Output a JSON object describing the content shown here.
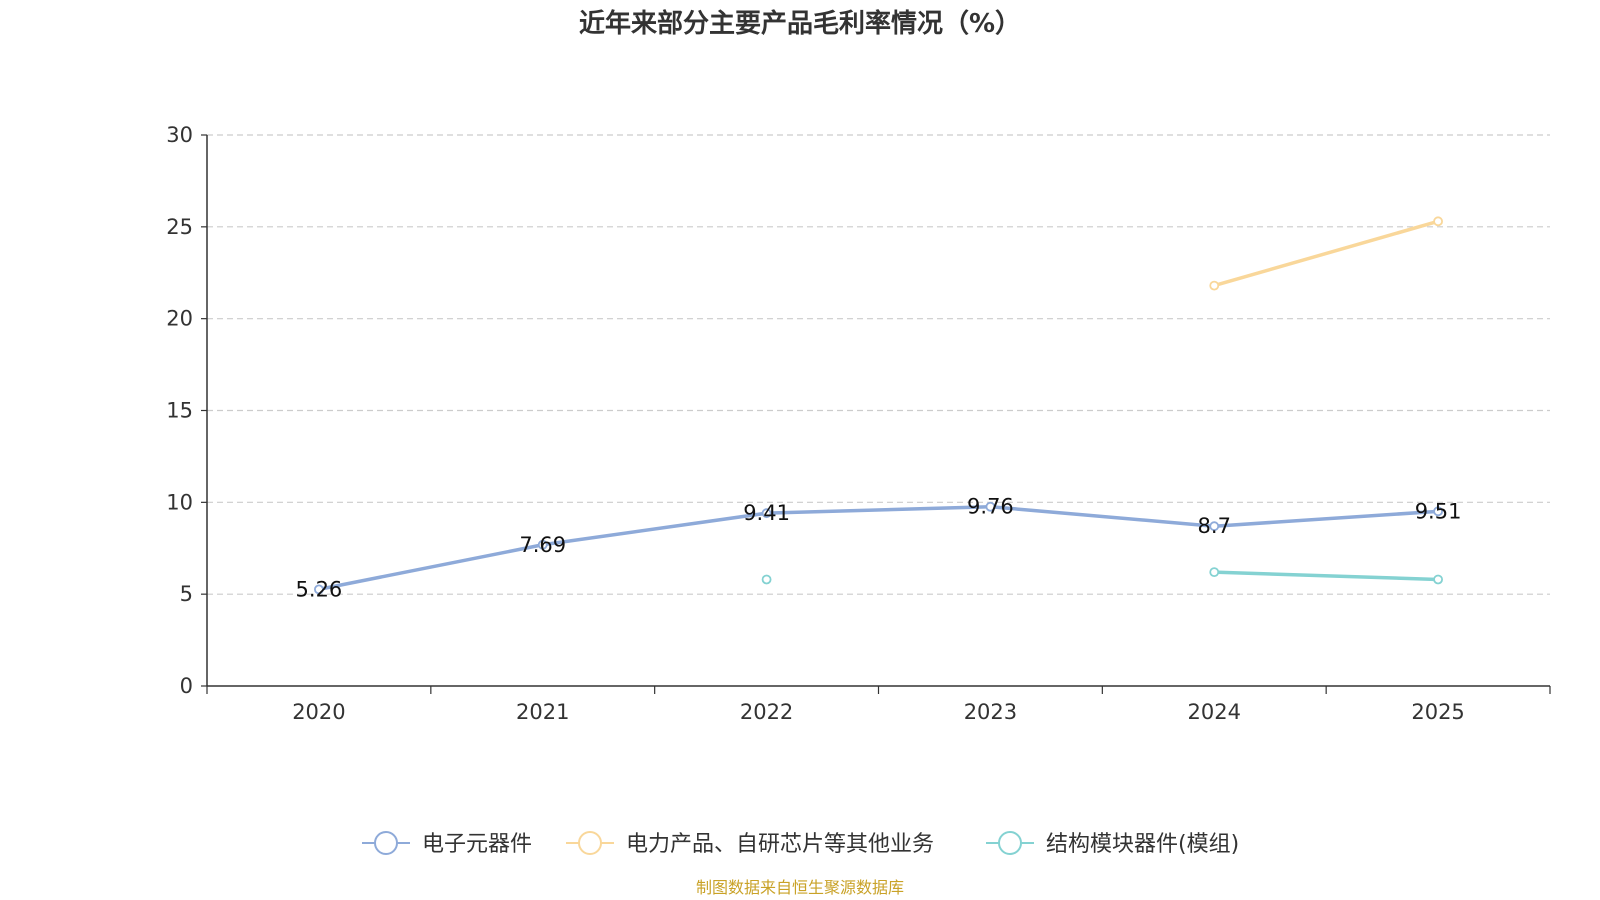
{
  "chart_data": {
    "type": "line",
    "title": "近年来部分主要产品毛利率情况（%）",
    "categories": [
      "2020",
      "2021",
      "2022",
      "2023",
      "2024",
      "2025"
    ],
    "ylim": [
      0,
      30
    ],
    "yticks": [
      "0",
      "5",
      "10",
      "15",
      "20",
      "25",
      "30"
    ],
    "grid": true,
    "legend_position": "bottom",
    "series": [
      {
        "name": "电子元器件",
        "color": "#8eaad9",
        "values": [
          5.26,
          7.69,
          9.41,
          9.76,
          8.7,
          9.51
        ],
        "labels": [
          "5.26",
          "7.69",
          "9.41",
          "9.76",
          "8.7",
          "9.51"
        ]
      },
      {
        "name": "电力产品、自研芯片等其他业务",
        "color": "#f9d79a",
        "values": [
          null,
          null,
          null,
          null,
          21.8,
          25.3
        ],
        "labels": []
      },
      {
        "name": "结构模块器件(模组)",
        "color": "#84d2d2",
        "values": [
          null,
          null,
          5.8,
          null,
          6.2,
          5.8
        ],
        "labels": []
      }
    ]
  },
  "source_note": "制图数据来自恒生聚源数据库"
}
